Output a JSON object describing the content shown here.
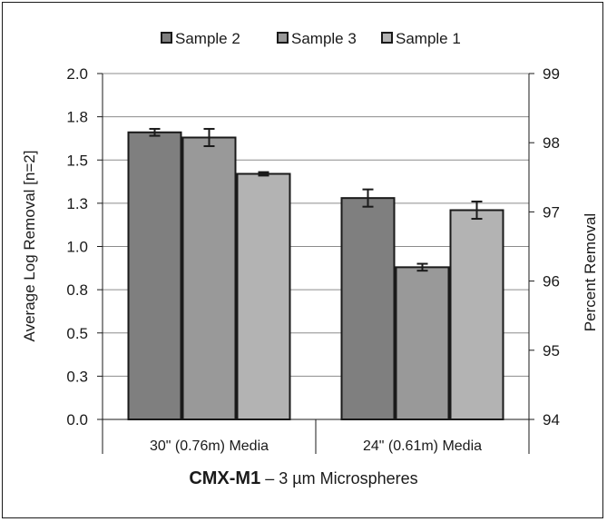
{
  "chart_data": {
    "type": "bar",
    "categories": [
      "30\" (0.76m) Media",
      "24\" (0.61m) Media"
    ],
    "series": [
      {
        "name": "Sample 2",
        "values": [
          1.66,
          1.28
        ],
        "error": [
          0.02,
          0.05
        ],
        "color": "#7f7f7f"
      },
      {
        "name": "Sample 3",
        "values": [
          1.63,
          0.88
        ],
        "error": [
          0.05,
          0.02
        ],
        "color": "#999999"
      },
      {
        "name": "Sample 1",
        "values": [
          1.42,
          1.21
        ],
        "error": [
          0.01,
          0.05
        ],
        "color": "#b3b3b3"
      }
    ],
    "ylabel": "Average Log Removal [n=2]",
    "y2label": "Percent Removal",
    "ylim": [
      0,
      2.0
    ],
    "yticks": [
      "0.0",
      "0.3",
      "0.5",
      "0.8",
      "1.0",
      "1.3",
      "1.5",
      "1.8",
      "2.0"
    ],
    "y2lim": [
      94,
      99
    ],
    "y2ticks": [
      "94",
      "95",
      "96",
      "97",
      "98",
      "99"
    ],
    "legend_position": "top",
    "grid": true
  },
  "caption": {
    "bold": "CMX-M1",
    "rest": " – 3 µm Microspheres"
  }
}
